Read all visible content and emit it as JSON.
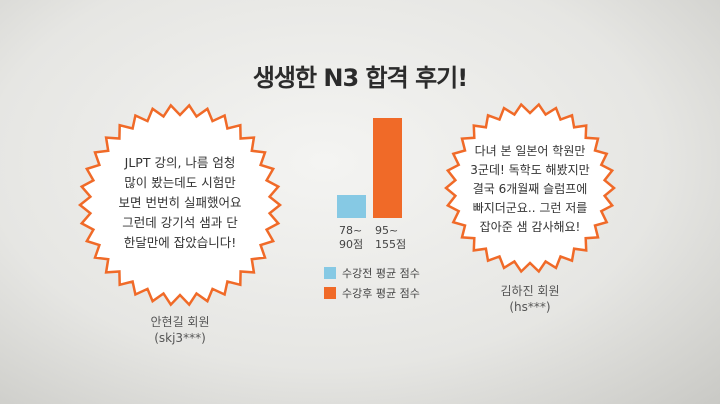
{
  "header": {
    "title": "생생한 N3 합격 후기!"
  },
  "testimonials": [
    {
      "lines": [
        "JLPT 강의, 나름 엄청",
        "많이 봤는데도 시험만",
        "보면 번번히 실패했어요",
        "그런데 강기석 샘과 단",
        "한달만에 잡았습니다!"
      ],
      "name": "안현길 회원",
      "id": "(skj3***)"
    },
    {
      "lines": [
        "다녀 본 일본어 학원만",
        "3군데! 독학도 해봤지만",
        "결국 6개월째 슬럼프에",
        "빠지더군요.. 그런 저를",
        "잡아준 샘 감사해요!"
      ],
      "name": "김하진 회원",
      "id": "(hs***)"
    }
  ],
  "chart_data": {
    "type": "bar",
    "categories": [
      "78~\n90점",
      "95~\n155점"
    ],
    "series": [
      {
        "name": "수강전 평균 점수",
        "color": "#86c9e4",
        "values": [
          35,
          null
        ]
      },
      {
        "name": "수강후 평균 점수",
        "color": "#f06a28",
        "values": [
          null,
          155
        ]
      }
    ],
    "ylim": [
      0,
      155
    ]
  }
}
